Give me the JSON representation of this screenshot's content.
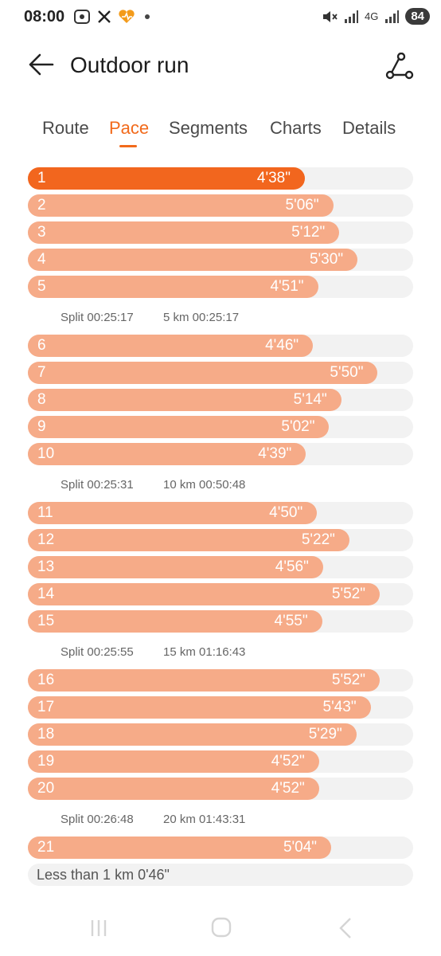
{
  "status_bar": {
    "time": "08:00",
    "battery": "84",
    "network": "4G"
  },
  "header": {
    "title": "Outdoor run",
    "back_icon": "arrow-left-icon",
    "route_icon": "route-share-icon"
  },
  "tabs": [
    {
      "label": "Route",
      "active": false
    },
    {
      "label": "Pace",
      "active": true
    },
    {
      "label": "Segments",
      "active": false
    },
    {
      "label": "Charts",
      "active": false
    },
    {
      "label": "Details",
      "active": false
    }
  ],
  "colors": {
    "accent": "#f26a1b",
    "bar": "#f6ab88",
    "track": "#f2f2f2"
  },
  "chart_data": {
    "type": "bar",
    "unit": "min'sec\" per km",
    "categories": [
      "1",
      "2",
      "3",
      "4",
      "5",
      "6",
      "7",
      "8",
      "9",
      "10",
      "11",
      "12",
      "13",
      "14",
      "15",
      "16",
      "17",
      "18",
      "19",
      "20",
      "21"
    ],
    "pace_labels": [
      "4'38\"",
      "5'06\"",
      "5'12\"",
      "5'30\"",
      "4'51\"",
      "4'46\"",
      "5'50\"",
      "5'14\"",
      "5'02\"",
      "4'39\"",
      "4'50\"",
      "5'22\"",
      "4'56\"",
      "5'52\"",
      "4'55\"",
      "5'52\"",
      "5'43\"",
      "5'29\"",
      "4'52\"",
      "4'52\"",
      "5'04\""
    ],
    "values_seconds": [
      278,
      306,
      312,
      330,
      291,
      286,
      350,
      314,
      302,
      279,
      290,
      322,
      296,
      352,
      295,
      352,
      343,
      329,
      292,
      292,
      304
    ],
    "fastest_index": 0,
    "splits": [
      {
        "split": "Split 00:25:17",
        "cumulative": "5 km 00:25:17"
      },
      {
        "split": "Split 00:25:31",
        "cumulative": "10 km 00:50:48"
      },
      {
        "split": "Split 00:25:55",
        "cumulative": "15 km 01:16:43"
      },
      {
        "split": "Split 00:26:48",
        "cumulative": "20 km 01:43:31"
      }
    ],
    "remainder": "Less than 1 km 0'46\""
  }
}
